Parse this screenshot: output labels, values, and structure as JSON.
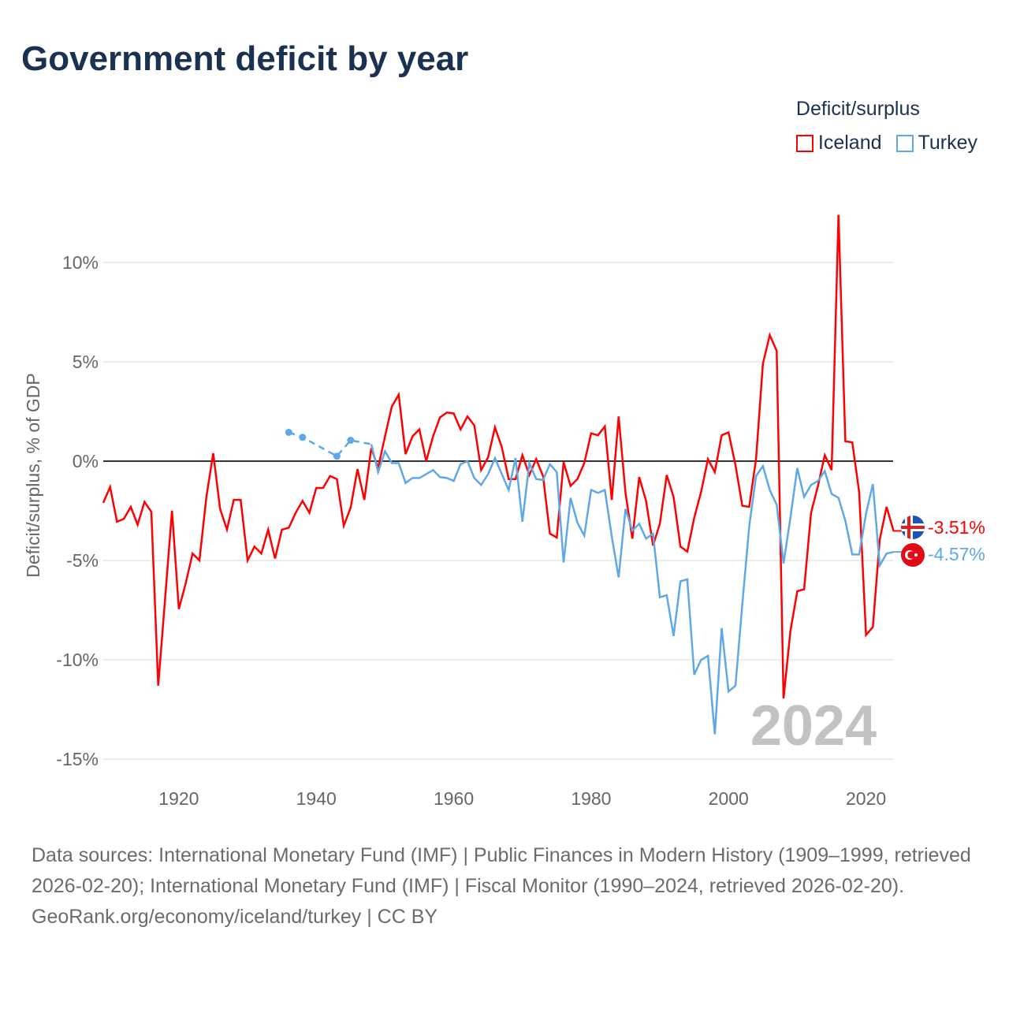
{
  "title": "Government deficit by year",
  "legend": {
    "title": "Deficit/surplus",
    "items": [
      {
        "name": "Iceland",
        "color": "#ff0000"
      },
      {
        "name": "Turkey",
        "color": "#5fa8e8"
      }
    ]
  },
  "chart_data": {
    "type": "line",
    "title": "Government deficit by year",
    "ylabel": "Deficit/surplus, % of GDP",
    "xlabel": "",
    "xlim": [
      1909,
      2024
    ],
    "ylim": [
      -15,
      12.5
    ],
    "x_ticks": [
      {
        "value": 1920,
        "label": "1920"
      },
      {
        "value": 1940,
        "label": "1940"
      },
      {
        "value": 1960,
        "label": "1960"
      },
      {
        "value": 1980,
        "label": "1980"
      },
      {
        "value": 2000,
        "label": "2000"
      },
      {
        "value": 2020,
        "label": "2020"
      }
    ],
    "y_ticks": [
      {
        "value": 10,
        "label": "10%"
      },
      {
        "value": 5,
        "label": "5%"
      },
      {
        "value": 0,
        "label": "0%"
      },
      {
        "value": -5,
        "label": "-5%"
      },
      {
        "value": -10,
        "label": "-10%"
      },
      {
        "value": -15,
        "label": "-15%"
      }
    ],
    "grid": true,
    "year_watermark": "2024",
    "series": [
      {
        "name": "Iceland",
        "color": "#ff0000",
        "end_label": "-3.51%",
        "start_year": 1909,
        "values": [
          -2.1,
          -1.3,
          -3.05,
          -2.9,
          -2.3,
          -3.2,
          -2.05,
          -2.55,
          -11.3,
          -6.9,
          -2.5,
          -7.45,
          -6.15,
          -4.65,
          -5.0,
          -1.8,
          0.4,
          -2.4,
          -3.45,
          -1.95,
          -1.95,
          -5.0,
          -4.3,
          -4.65,
          -3.45,
          -4.9,
          -3.45,
          -3.35,
          -2.6,
          -2.0,
          -2.6,
          -1.35,
          -1.35,
          -0.75,
          -0.9,
          -3.25,
          -2.35,
          -0.4,
          -1.95,
          0.65,
          -0.35,
          1.25,
          2.75,
          3.35,
          0.35,
          1.25,
          1.6,
          0.0,
          1.25,
          2.2,
          2.45,
          2.4,
          1.6,
          2.25,
          1.8,
          -0.45,
          0.2,
          1.7,
          0.7,
          -0.9,
          -0.9,
          0.3,
          -0.7,
          0.1,
          -0.75,
          -3.65,
          -3.85,
          -0.05,
          -1.25,
          -0.9,
          -0.1,
          1.4,
          1.3,
          1.75,
          -1.95,
          2.25,
          -1.6,
          -3.9,
          -0.8,
          -2.0,
          -4.25,
          -3.15,
          -0.7,
          -1.8,
          -4.3,
          -4.55,
          -2.85,
          -1.55,
          0.1,
          -0.55,
          1.3,
          1.45,
          -0.2,
          -2.25,
          -2.3,
          0.1,
          4.9,
          6.35,
          5.55,
          -11.95,
          -8.55,
          -6.55,
          -6.45,
          -2.6,
          -1.25,
          0.3,
          -0.45,
          12.4,
          1.0,
          0.95,
          -1.55,
          -8.75,
          -8.35,
          -3.95,
          -2.3,
          -3.51
        ]
      },
      {
        "name": "Turkey",
        "color": "#5fa8e8",
        "end_label": "-4.57%",
        "start_year": 1948,
        "sparse_points": [
          {
            "x": 1936,
            "y": 1.45
          },
          {
            "x": 1938,
            "y": 1.2
          },
          {
            "x": 1943,
            "y": 0.25
          },
          {
            "x": 1945,
            "y": 1.05
          },
          {
            "x": 1948,
            "y": 0.85
          }
        ],
        "values": [
          0.85,
          -0.55,
          0.5,
          -0.1,
          -0.1,
          -1.1,
          -0.85,
          -0.85,
          -0.65,
          -0.45,
          -0.8,
          -0.85,
          -1.0,
          -0.15,
          0.0,
          -0.85,
          -1.2,
          -0.65,
          0.15,
          -0.65,
          -1.45,
          0.15,
          -3.05,
          -0.1,
          -0.9,
          -0.95,
          -0.15,
          -0.55,
          -5.1,
          -1.85,
          -3.1,
          -3.75,
          -1.45,
          -1.6,
          -1.45,
          -3.8,
          -5.85,
          -2.4,
          -3.5,
          -3.15,
          -3.9,
          -3.65,
          -6.85,
          -6.75,
          -8.8,
          -6.05,
          -5.95,
          -10.75,
          -10.0,
          -9.8,
          -13.75,
          -8.4,
          -11.6,
          -11.3,
          -7.2,
          -3.3,
          -0.75,
          -0.25,
          -1.45,
          -2.2,
          -5.15,
          -2.85,
          -0.35,
          -1.8,
          -1.2,
          -1.0,
          -0.5,
          -1.65,
          -1.85,
          -3.0,
          -4.7,
          -4.7,
          -2.65,
          -1.15,
          -5.25,
          -4.65,
          -4.57
        ]
      }
    ]
  },
  "footer": {
    "sources": "Data sources: International Monetary Fund (IMF) | Public Finances in Modern History (1909–1999, retrieved 2026-02-20); International Monetary Fund (IMF) | Fiscal Monitor (1990–2024, retrieved 2026-02-20).",
    "credit": "GeoRank.org/economy/iceland/turkey | CC BY"
  }
}
